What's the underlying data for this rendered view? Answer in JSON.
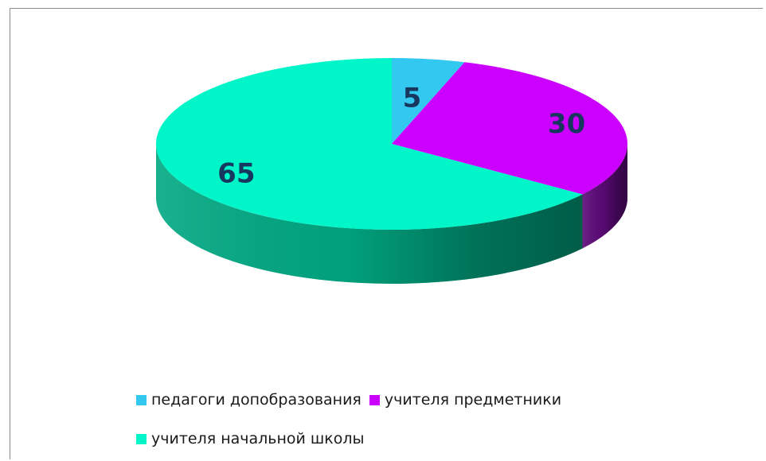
{
  "chart_data": {
    "type": "pie",
    "categories": [
      "педагоги допобразования",
      "учителя предметники",
      "учителя начальной школы"
    ],
    "values": [
      5,
      30,
      65
    ],
    "data_labels": [
      "5",
      "30",
      "65"
    ],
    "colors": [
      "#33c8f0",
      "#cc00ff",
      "#00f5c8"
    ],
    "side_colors": [
      "#1f86a3",
      "#5c0a78",
      "#00a882"
    ],
    "title": "",
    "style": "3d",
    "legend_position": "bottom"
  }
}
